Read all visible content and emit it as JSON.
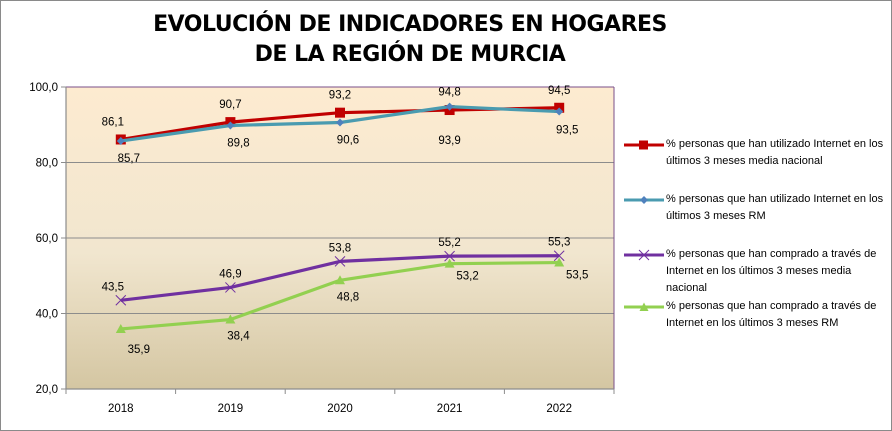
{
  "chart_data": {
    "type": "line",
    "title": [
      "EVOLUCIÓN DE INDICADORES EN HOGARES",
      "DE LA REGIÓN DE MURCIA"
    ],
    "xlabel": "",
    "ylabel": "",
    "categories": [
      "2018",
      "2019",
      "2020",
      "2021",
      "2022"
    ],
    "ylim": [
      20,
      100
    ],
    "yticks": [
      20,
      40,
      60,
      80,
      100
    ],
    "ytick_labels": [
      "20,0",
      "40,0",
      "60,0",
      "80,0",
      "100,0"
    ],
    "grid": true,
    "legend_position": "right",
    "series": [
      {
        "name": "% personas que han utilizado Internet en los últimos 3 meses media nacional",
        "color": "#c00000",
        "marker": "square",
        "values": [
          86.1,
          90.7,
          93.2,
          93.9,
          94.5
        ],
        "labels": [
          "86,1",
          "90,7",
          "93,2",
          "93,9",
          "94,5"
        ]
      },
      {
        "name": "% personas que han utilizado Internet en los últimos 3 meses RM",
        "color": "#4a9bb0",
        "marker": "diamond",
        "values": [
          85.7,
          89.8,
          90.6,
          94.8,
          93.5
        ],
        "labels": [
          "85,7",
          "89,8",
          "90,6",
          "94,8",
          "93,5"
        ]
      },
      {
        "name": "% personas que han comprado a través de Internet en los últimos 3 meses media nacional",
        "color": "#7030a0",
        "marker": "x",
        "values": [
          43.5,
          46.9,
          53.8,
          55.2,
          55.3
        ],
        "labels": [
          "43,5",
          "46,9",
          "53,8",
          "55,2",
          "55,3"
        ]
      },
      {
        "name": "% personas que han comprado a través de Internet en los últimos 3 meses RM",
        "color": "#92d050",
        "marker": "triangle",
        "values": [
          35.9,
          38.4,
          48.8,
          53.2,
          53.5
        ],
        "labels": [
          "35,9",
          "38,4",
          "48,8",
          "53,2",
          "53,5"
        ]
      }
    ]
  },
  "legend": {
    "items": [
      "% personas que han utilizado Internet en los últimos 3 meses media nacional",
      "% personas que han utilizado Internet en los últimos 3 meses RM",
      "% personas que han comprado a través de Internet en los últimos 3 meses media nacional",
      "% personas que han comprado a través de Internet en los últimos 3 meses RM"
    ]
  }
}
